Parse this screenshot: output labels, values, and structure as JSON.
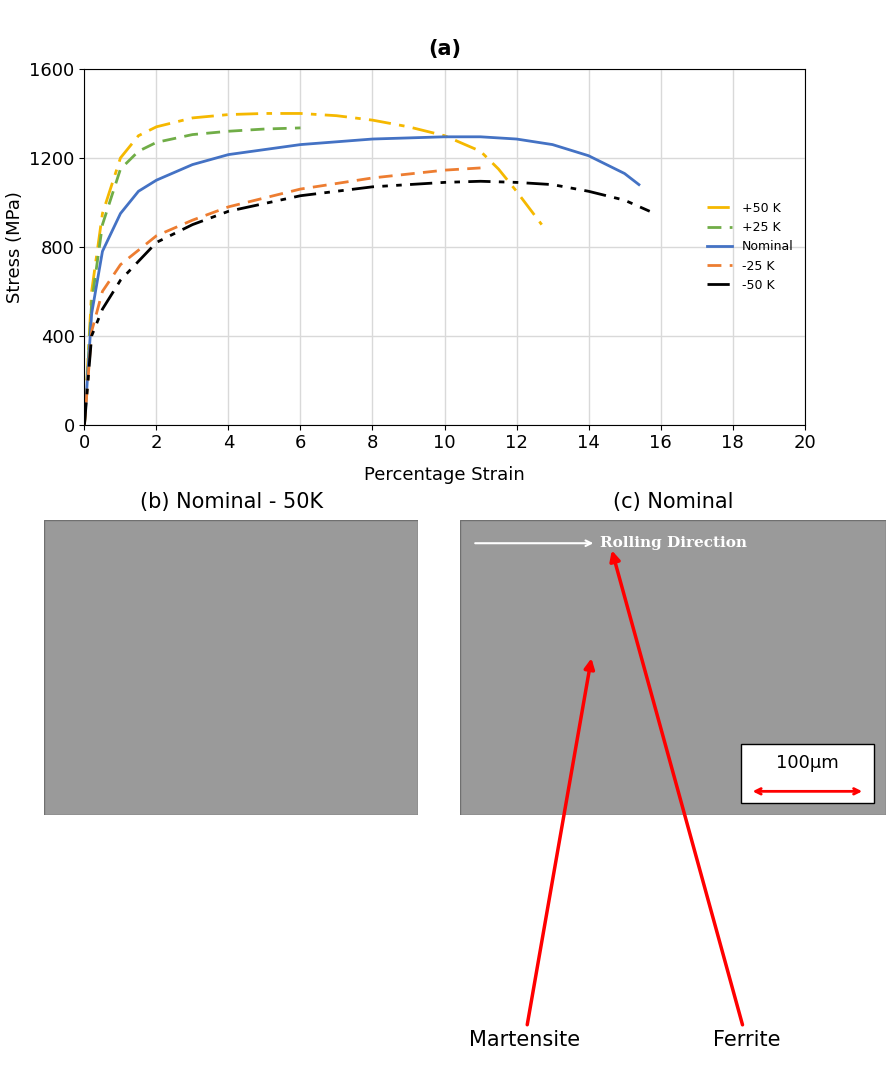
{
  "chart_data": {
    "type": "line",
    "title": "(a)",
    "x_label": "Percentage Strain",
    "y_label": "Stress (MPa)",
    "xlim": [
      0,
      20
    ],
    "ylim": [
      0,
      1600
    ],
    "xticks": [
      0,
      2,
      4,
      6,
      8,
      10,
      12,
      14,
      16,
      18,
      20
    ],
    "yticks": [
      0,
      400,
      800,
      1200,
      1600
    ],
    "grid": true,
    "legend": "center right",
    "series": [
      {
        "name": "+50 K",
        "color": "#f5b800",
        "line_style": "dashdot",
        "x": [
          0,
          0.2,
          0.5,
          1,
          1.5,
          2,
          3,
          4,
          5,
          6,
          7,
          8,
          9,
          10,
          11,
          11.5,
          12,
          12.7
        ],
        "values": [
          0,
          600,
          950,
          1200,
          1300,
          1340,
          1380,
          1395,
          1400,
          1400,
          1390,
          1370,
          1340,
          1300,
          1230,
          1150,
          1050,
          900
        ]
      },
      {
        "name": "+25 K",
        "color": "#70ad47",
        "line_style": "dashed",
        "x": [
          0,
          0.2,
          0.5,
          1,
          1.5,
          2,
          3,
          4,
          5,
          6
        ],
        "values": [
          0,
          550,
          900,
          1150,
          1230,
          1270,
          1305,
          1320,
          1330,
          1335
        ]
      },
      {
        "name": "Nominal",
        "color": "#4472c4",
        "line_style": "solid",
        "x": [
          0,
          0.2,
          0.5,
          1,
          1.5,
          2,
          3,
          4,
          6,
          8,
          10,
          11,
          12,
          13,
          14,
          15,
          15.4
        ],
        "values": [
          0,
          500,
          780,
          950,
          1050,
          1100,
          1170,
          1215,
          1260,
          1285,
          1295,
          1295,
          1285,
          1260,
          1210,
          1130,
          1080
        ]
      },
      {
        "name": "-25 K",
        "color": "#ed7d31",
        "line_style": "dashed",
        "x": [
          0,
          0.2,
          0.5,
          1,
          2,
          3,
          4,
          6,
          8,
          10,
          11
        ],
        "values": [
          0,
          420,
          600,
          720,
          850,
          920,
          980,
          1060,
          1110,
          1145,
          1155
        ]
      },
      {
        "name": "-50 K",
        "color": "#000000",
        "line_style": "dashdotdot",
        "x": [
          0,
          0.2,
          0.5,
          1,
          2,
          3,
          4,
          6,
          8,
          10,
          11,
          12,
          13,
          14,
          15,
          15.7
        ],
        "values": [
          0,
          400,
          520,
          650,
          820,
          900,
          960,
          1030,
          1070,
          1090,
          1095,
          1090,
          1080,
          1050,
          1010,
          960
        ]
      }
    ]
  },
  "images": [
    {
      "title": "(b) Nominal - 50K"
    },
    {
      "title": "(c) Nominal",
      "direction_label": "Rolling Direction",
      "scale_bar": "100µm",
      "labels": [
        "Martensite",
        "Ferrite"
      ]
    }
  ]
}
